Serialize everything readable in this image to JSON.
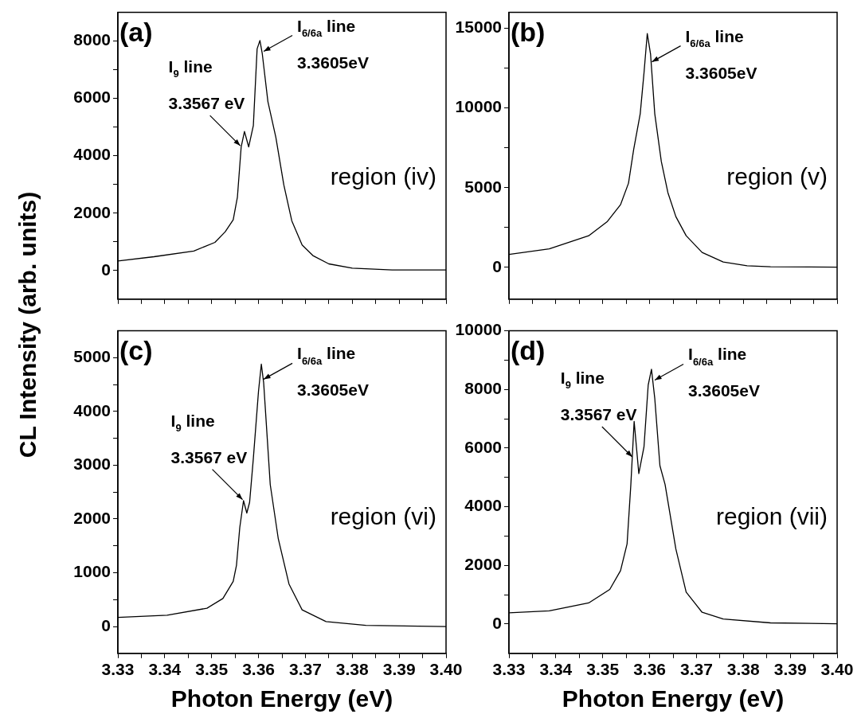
{
  "chart_data": [
    {
      "type": "line",
      "title": "(a)",
      "ylabel": "CL Intensity (arb. units)",
      "xlim": [
        3.33,
        3.4
      ],
      "ylim": [
        -1000,
        9000
      ],
      "xticks": [
        3.33,
        3.335,
        3.34,
        3.345,
        3.35,
        3.355,
        3.36,
        3.365,
        3.37,
        3.375,
        3.38,
        3.385,
        3.39,
        3.395,
        3.4
      ],
      "yticks": [
        0,
        {
          "value": 1000,
          "label": null
        },
        2000,
        {
          "value": 3000,
          "label": null
        },
        4000,
        {
          "value": 5000,
          "label": null
        },
        6000,
        {
          "value": 7000,
          "label": null
        },
        8000
      ],
      "tick_labels": "y",
      "grid": false,
      "legend": false,
      "marker": "none",
      "line_style": "solid",
      "series": [
        {
          "color": "#000000",
          "x": [
            3.33,
            3.3377,
            3.3462,
            3.3507,
            3.3529,
            3.3546,
            3.3555,
            3.3563,
            3.357,
            3.3579,
            3.3589,
            3.3597,
            3.3603,
            3.3608,
            3.362,
            3.3637,
            3.3654,
            3.3671,
            3.3693,
            3.3716,
            3.375,
            3.38,
            3.3885,
            3.4
          ],
          "values": [
            330,
            480,
            680,
            980,
            1350,
            1770,
            2560,
            4310,
            4850,
            4310,
            5060,
            7730,
            8020,
            7560,
            5890,
            4640,
            2980,
            1730,
            890,
            520,
            230,
            80,
            20,
            20
          ]
        }
      ],
      "annotations": [
        {
          "text": "I$_{9}$ line\n3.3567 eV",
          "x": 3.3561,
          "y": 4350
        },
        {
          "text": "I$_{6/6a}$ line\n3.3605eV",
          "x": 3.3611,
          "y": 7640
        },
        "region (iv)"
      ]
    },
    {
      "type": "line",
      "title": "(b)",
      "xlim": [
        3.33,
        3.4
      ],
      "ylim": [
        -2000,
        16000
      ],
      "xticks": [
        3.33,
        3.335,
        3.34,
        3.345,
        3.35,
        3.355,
        3.36,
        3.365,
        3.37,
        3.375,
        3.38,
        3.385,
        3.39,
        3.395,
        3.4
      ],
      "yticks": [
        0,
        {
          "value": 2500,
          "label": null
        },
        5000,
        {
          "value": 7500,
          "label": null
        },
        10000,
        {
          "value": 12500,
          "label": null
        },
        15000
      ],
      "tick_labels": "y",
      "grid": false,
      "legend": false,
      "marker": "none",
      "line_style": "solid",
      "series": [
        {
          "color": "#000000",
          "x": [
            3.33,
            3.3386,
            3.347,
            3.351,
            3.3538,
            3.3555,
            3.3566,
            3.358,
            3.3588,
            3.3595,
            3.3602,
            3.3611,
            3.3625,
            3.3639,
            3.3656,
            3.3678,
            3.3712,
            3.3757,
            3.3808,
            3.3858,
            3.4
          ],
          "values": [
            810,
            1160,
            1980,
            2880,
            3930,
            5280,
            7390,
            9640,
            12190,
            14670,
            13390,
            9640,
            6640,
            4690,
            3180,
            1980,
            930,
            330,
            100,
            30,
            10
          ]
        }
      ],
      "annotations": [
        {
          "text": "I$_{6/6a}$ line\n3.3605eV",
          "x": 3.3605,
          "y": 12900
        },
        "region (v)"
      ]
    },
    {
      "type": "line",
      "title": "(c)",
      "xlabel": "Photon Energy (eV)",
      "xlim": [
        3.33,
        3.4
      ],
      "ylim": [
        -500,
        5500
      ],
      "xticks": [
        3.33,
        {
          "value": 3.335,
          "label": null
        },
        3.34,
        {
          "value": 3.345,
          "label": null
        },
        3.35,
        {
          "value": 3.355,
          "label": null
        },
        3.36,
        {
          "value": 3.365,
          "label": null
        },
        3.37,
        {
          "value": 3.375,
          "label": null
        },
        3.38,
        {
          "value": 3.385,
          "label": null
        },
        3.39,
        {
          "value": 3.395,
          "label": null
        },
        {
          "value": 3.4,
          "label": "3.40"
        }
      ],
      "yticks": [
        0,
        {
          "value": 500,
          "label": null
        },
        1000,
        {
          "value": 1500,
          "label": null
        },
        2000,
        {
          "value": 2500,
          "label": null
        },
        3000,
        {
          "value": 3500,
          "label": null
        },
        4000,
        {
          "value": 4500,
          "label": null
        },
        5000
      ],
      "grid": false,
      "legend": false,
      "marker": "none",
      "line_style": "solid",
      "series": [
        {
          "color": "#000000",
          "x": [
            3.33,
            3.3405,
            3.349,
            3.3524,
            3.3546,
            3.3553,
            3.356,
            3.3568,
            3.3575,
            3.3581,
            3.3589,
            3.36,
            3.3606,
            3.3611,
            3.3625,
            3.3642,
            3.3665,
            3.3693,
            3.3744,
            3.3829,
            3.4
          ],
          "values": [
            170,
            210,
            340,
            520,
            840,
            1140,
            1840,
            2340,
            2110,
            2310,
            3130,
            4380,
            4880,
            4530,
            2640,
            1640,
            790,
            310,
            90,
            20,
            0
          ]
        }
      ],
      "annotations": [
        {
          "text": "I$_{9}$ line\n3.3567 eV",
          "x": 3.3566,
          "y": 2360
        },
        {
          "text": "I$_{6/6a}$ line\n3.3605eV",
          "x": 3.3611,
          "y": 4600
        },
        "region (vi)"
      ]
    },
    {
      "type": "line",
      "title": "(d)",
      "xlabel": "Photon Energy (eV)",
      "xlim": [
        3.33,
        3.4
      ],
      "ylim": [
        -1000,
        10000
      ],
      "xticks": [
        3.33,
        {
          "value": 3.335,
          "label": null
        },
        3.34,
        {
          "value": 3.345,
          "label": null
        },
        3.35,
        {
          "value": 3.355,
          "label": null
        },
        3.36,
        {
          "value": 3.365,
          "label": null
        },
        3.37,
        {
          "value": 3.375,
          "label": null
        },
        3.38,
        {
          "value": 3.385,
          "label": null
        },
        3.39,
        {
          "value": 3.395,
          "label": null
        },
        {
          "value": 3.4,
          "label": "3.40"
        }
      ],
      "yticks": [
        0,
        {
          "value": 1000,
          "label": null
        },
        2000,
        {
          "value": 3000,
          "label": null
        },
        4000,
        {
          "value": 5000,
          "label": null
        },
        6000,
        {
          "value": 7000,
          "label": null
        },
        8000,
        {
          "value": 9000,
          "label": null
        },
        10000
      ],
      "grid": false,
      "legend": false,
      "marker": "none",
      "line_style": "solid",
      "series": [
        {
          "color": "#000000",
          "x": [
            3.33,
            3.3386,
            3.347,
            3.3515,
            3.3538,
            3.3552,
            3.356,
            3.3567,
            3.3577,
            3.3588,
            3.3597,
            3.3604,
            3.3611,
            3.3622,
            3.3633,
            3.3656,
            3.3678,
            3.3712,
            3.3757,
            3.3858,
            3.4
          ],
          "values": [
            380,
            450,
            720,
            1180,
            1820,
            2740,
            4760,
            6910,
            5130,
            6040,
            8150,
            8690,
            7700,
            5400,
            4760,
            2560,
            1090,
            400,
            170,
            40,
            10
          ]
        }
      ],
      "annotations": [
        {
          "text": "I$_{9}$ line\n3.3567 eV",
          "x": 3.3563,
          "y": 5700
        },
        {
          "text": "I$_{6/6a}$ line\n3.3605eV",
          "x": 3.3611,
          "y": 8320
        },
        "region (vii)"
      ]
    }
  ]
}
